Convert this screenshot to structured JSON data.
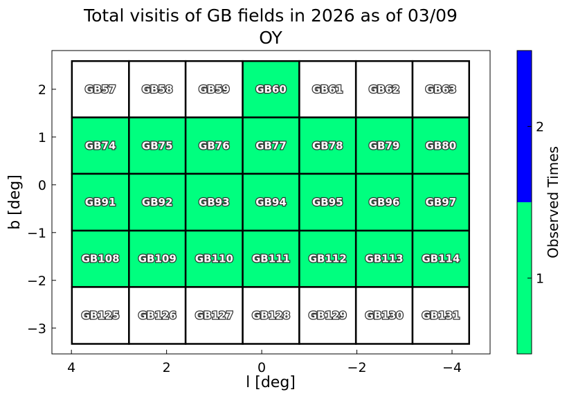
{
  "chart_data": {
    "type": "heatmap",
    "title": "Total visitis of GB fields in 2026 as of 03/09",
    "subtitle": "OY",
    "x_label": "l [deg]",
    "y_label": "b [deg]",
    "xlim": [
      4.41,
      -4.8
    ],
    "ylim": [
      -3.54,
      2.81
    ],
    "xticks": [
      4,
      2,
      0,
      {
        "value": -2,
        "label": "−2"
      },
      {
        "value": -4,
        "label": "−4"
      }
    ],
    "yticks": [
      2,
      1,
      0,
      {
        "value": -1,
        "label": "−1"
      },
      {
        "value": -2,
        "label": "−2"
      },
      {
        "value": -3,
        "label": "−3"
      }
    ],
    "l_edges": [
      3.99,
      2.79,
      1.6,
      0.4,
      -0.79,
      -1.98,
      -3.17,
      -4.36
    ],
    "b_edges": [
      2.59,
      1.41,
      0.23,
      -0.96,
      -2.14,
      -3.33
    ],
    "labels": [
      [
        "GB57",
        "GB58",
        "GB59",
        "GB60",
        "GB61",
        "GB62",
        "GB63"
      ],
      [
        "GB74",
        "GB75",
        "GB76",
        "GB77",
        "GB78",
        "GB79",
        "GB80"
      ],
      [
        "GB91",
        "GB92",
        "GB93",
        "GB94",
        "GB95",
        "GB96",
        "GB97"
      ],
      [
        "GB108",
        "GB109",
        "GB110",
        "GB111",
        "GB112",
        "GB113",
        "GB114"
      ],
      [
        "GB125",
        "GB126",
        "GB127",
        "GB128",
        "GB129",
        "GB130",
        "GB131"
      ]
    ],
    "values": [
      [
        0,
        0,
        0,
        1,
        0,
        0,
        0
      ],
      [
        1,
        1,
        1,
        1,
        1,
        1,
        1
      ],
      [
        1,
        1,
        1,
        1,
        1,
        1,
        1
      ],
      [
        1,
        1,
        1,
        1,
        1,
        1,
        1
      ],
      [
        0,
        0,
        0,
        0,
        0,
        0,
        0
      ]
    ],
    "empty_color": "#ffffff",
    "colorbar": {
      "label": "Observed Times",
      "colors": [
        "#00ff7f",
        "#0000ff"
      ],
      "lim": [
        0.5,
        2.5
      ],
      "ticks": [
        1,
        2
      ]
    }
  }
}
